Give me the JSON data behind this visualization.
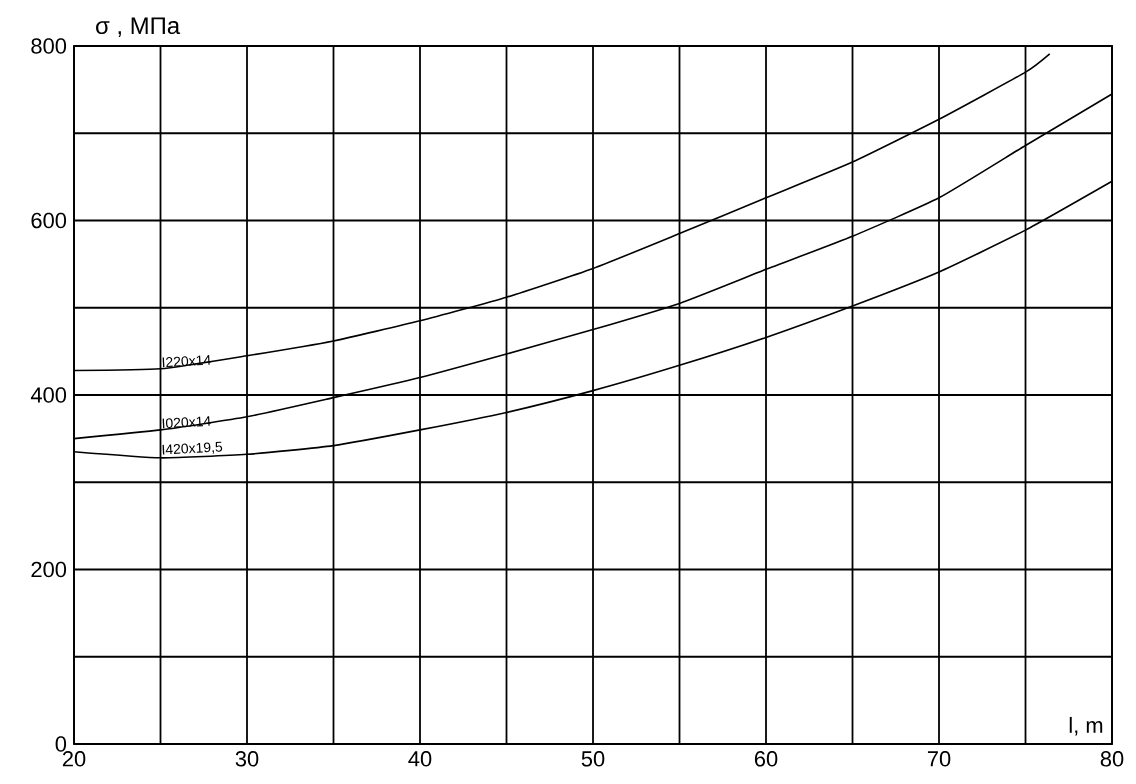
{
  "chart_data": {
    "type": "line",
    "xlabel": "l, m",
    "ylabel": "σ , МПа",
    "x": [
      20,
      25,
      30,
      35,
      40,
      45,
      50,
      55,
      60,
      65,
      70,
      75,
      76.4
    ],
    "series": [
      {
        "name": "I220x14",
        "color": "#000000",
        "values": [
          428,
          430,
          445,
          462,
          485,
          512,
          545,
          585,
          626,
          667,
          716,
          770,
          791
        ]
      },
      {
        "name": "I020x14",
        "color": "#000000",
        "x": [
          20,
          25,
          30,
          35,
          40,
          45,
          50,
          55,
          60,
          65,
          70,
          75,
          80
        ],
        "values": [
          350,
          360,
          375,
          397,
          420,
          447,
          475,
          505,
          544,
          582,
          626,
          686,
          745
        ]
      },
      {
        "name": "I420x19,5",
        "color": "#000000",
        "x": [
          20,
          25,
          30,
          35,
          40,
          45,
          50,
          55,
          60,
          65,
          70,
          75,
          80
        ],
        "values": [
          335,
          328,
          332,
          342,
          360,
          380,
          405,
          434,
          466,
          502,
          541,
          589,
          645
        ]
      }
    ],
    "xlim": [
      20,
      80
    ],
    "ylim": [
      0,
      800
    ],
    "xticks": [
      20,
      {
        "value": 25,
        "label": null
      },
      30,
      {
        "value": 35,
        "label": null
      },
      40,
      {
        "value": 45,
        "label": null
      },
      50,
      {
        "value": 55,
        "label": null
      },
      60,
      {
        "value": 65,
        "label": null
      },
      70,
      {
        "value": 75,
        "label": null
      },
      80
    ],
    "yticks": [
      0,
      {
        "value": 100,
        "label": null
      },
      200,
      {
        "value": 300,
        "label": null
      },
      400,
      {
        "value": 500,
        "label": null
      },
      600,
      {
        "value": 700,
        "label": null
      },
      800
    ],
    "grid": true,
    "marker": "none",
    "line_style": "solid"
  }
}
